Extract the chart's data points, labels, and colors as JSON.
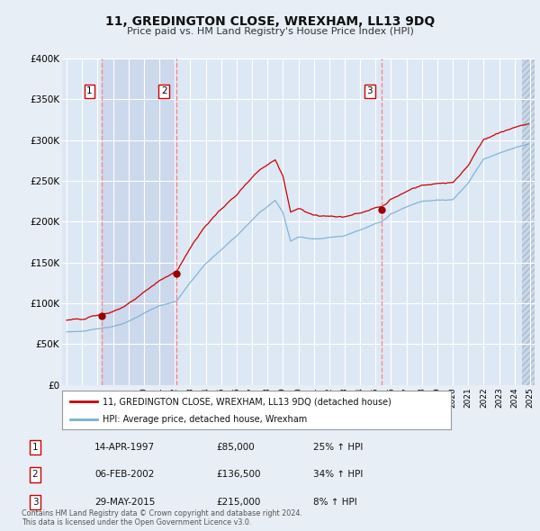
{
  "title": "11, GREDINGTON CLOSE, WREXHAM, LL13 9DQ",
  "subtitle": "Price paid vs. HM Land Registry's House Price Index (HPI)",
  "ylim": [
    0,
    400000
  ],
  "yticks": [
    0,
    50000,
    100000,
    150000,
    200000,
    250000,
    300000,
    350000,
    400000
  ],
  "ytick_labels": [
    "£0",
    "£50K",
    "£100K",
    "£150K",
    "£200K",
    "£250K",
    "£300K",
    "£350K",
    "£400K"
  ],
  "xlim_start": 1994.7,
  "xlim_end": 2025.3,
  "sales": [
    {
      "date_num": 1997.28,
      "price": 85000,
      "label": "1"
    },
    {
      "date_num": 2002.09,
      "price": 136500,
      "label": "2"
    },
    {
      "date_num": 2015.41,
      "price": 215000,
      "label": "3"
    }
  ],
  "sale_info": [
    {
      "num": "1",
      "date": "14-APR-1997",
      "price": "£85,000",
      "pct": "25%",
      "dir": "↑"
    },
    {
      "num": "2",
      "date": "06-FEB-2002",
      "price": "£136,500",
      "pct": "34%",
      "dir": "↑"
    },
    {
      "num": "3",
      "date": "29-MAY-2015",
      "price": "£215,000",
      "pct": "8%",
      "dir": "↑"
    }
  ],
  "line_color_red": "#cc0000",
  "line_color_blue": "#7aafd4",
  "vline_color": "#ff8888",
  "dot_color": "#990000",
  "bg_color": "#e8eef5",
  "plot_bg_light": "#dde8f5",
  "plot_bg_dark": "#ccd8ec",
  "grid_color": "#ffffff",
  "legend_label_red": "11, GREDINGTON CLOSE, WREXHAM, LL13 9DQ (detached house)",
  "legend_label_blue": "HPI: Average price, detached house, Wrexham",
  "footer": "Contains HM Land Registry data © Crown copyright and database right 2024.\nThis data is licensed under the Open Government Licence v3.0.",
  "hpi_seed": 123,
  "prop_seed": 456
}
